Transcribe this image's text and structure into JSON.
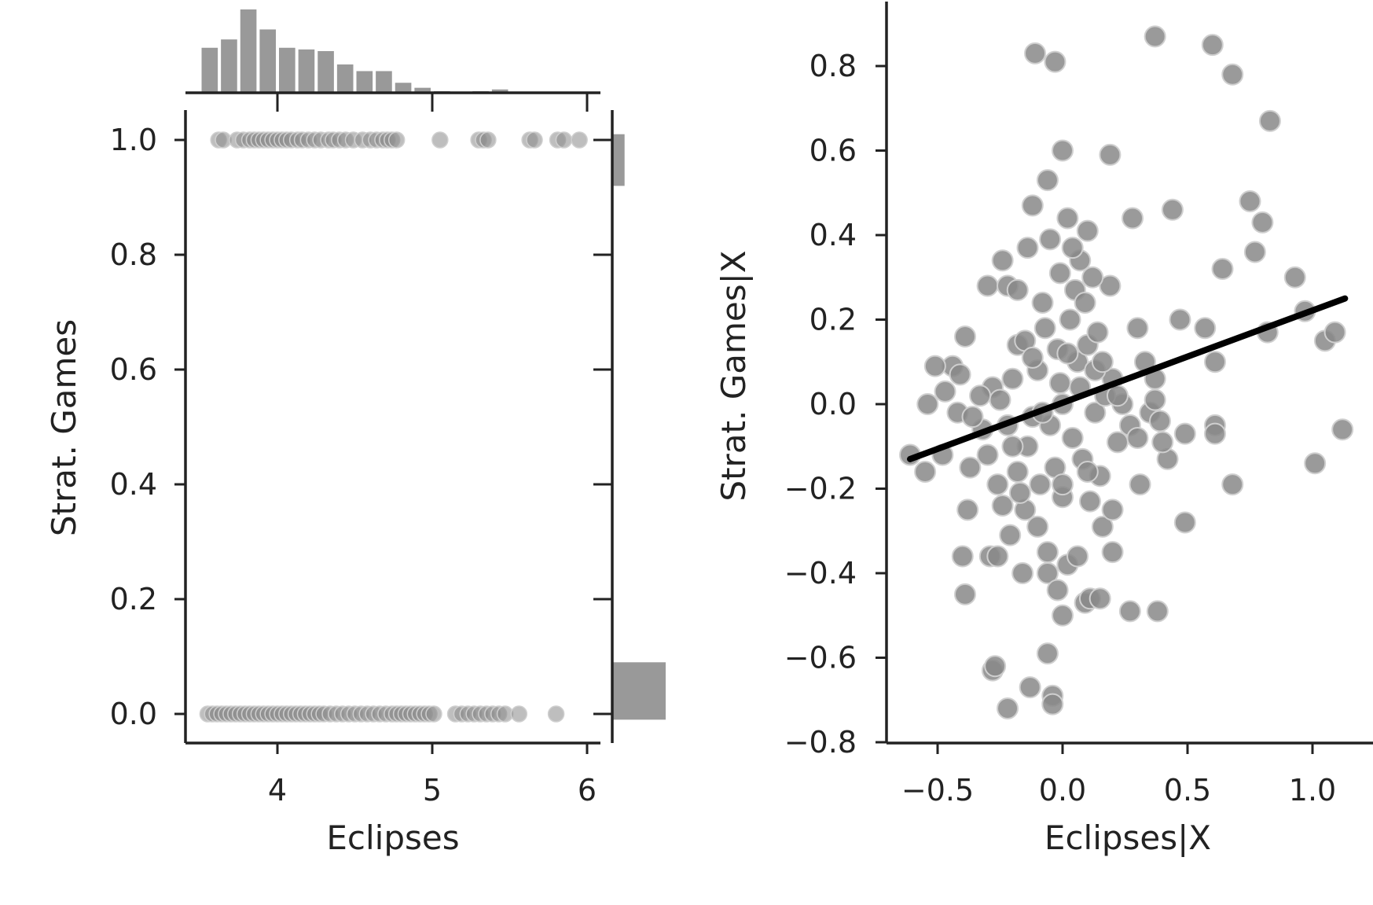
{
  "colors": {
    "point": "#888888",
    "point_edge": "#cfcfcf",
    "bar": "#999999",
    "axis": "#222222",
    "fit_line": "#000000"
  },
  "chart_data": [
    {
      "type": "scatter",
      "xlabel": "Eclipses",
      "ylabel": "Strat. Games",
      "xlim": [
        3.4,
        6.1
      ],
      "ylim": [
        -0.05,
        1.05
      ],
      "xticks": [
        "4",
        "5",
        "6"
      ],
      "xtick_values": [
        4,
        5,
        6
      ],
      "yticks": [
        "0.0",
        "0.2",
        "0.4",
        "0.6",
        "0.8",
        "1.0"
      ],
      "ytick_values": [
        0.0,
        0.2,
        0.4,
        0.6,
        0.8,
        1.0
      ],
      "points_y1": [
        3.62,
        3.65,
        3.74,
        3.78,
        3.82,
        3.85,
        3.88,
        3.91,
        3.94,
        3.97,
        4.0,
        4.03,
        4.06,
        4.09,
        4.13,
        4.16,
        4.2,
        4.24,
        4.28,
        4.33,
        4.36,
        4.4,
        4.44,
        4.49,
        4.55,
        4.6,
        4.64,
        4.68,
        4.71,
        4.74,
        4.77,
        5.05,
        5.3,
        5.33,
        5.36,
        5.63,
        5.66,
        5.81,
        5.85,
        5.95
      ],
      "points_y0": [
        3.55,
        3.58,
        3.61,
        3.64,
        3.67,
        3.7,
        3.73,
        3.76,
        3.79,
        3.82,
        3.85,
        3.88,
        3.91,
        3.94,
        3.97,
        4.0,
        4.03,
        4.06,
        4.09,
        4.12,
        4.15,
        4.18,
        4.21,
        4.24,
        4.27,
        4.3,
        4.34,
        4.38,
        4.42,
        4.46,
        4.5,
        4.54,
        4.58,
        4.62,
        4.66,
        4.7,
        4.74,
        4.77,
        4.8,
        4.83,
        4.86,
        4.89,
        4.92,
        4.95,
        4.98,
        5.01,
        5.15,
        5.19,
        5.23,
        5.27,
        5.31,
        5.35,
        5.39,
        5.43,
        5.47,
        5.56,
        5.8
      ],
      "marginal_x": {
        "bin_edges": [
          3.5,
          3.625,
          3.75,
          3.875,
          4.0,
          4.125,
          4.25,
          4.375,
          4.5,
          4.625,
          4.75,
          4.875,
          5.0,
          5.125,
          5.25,
          5.375,
          5.5
        ],
        "counts": [
          27,
          32,
          50,
          38,
          27,
          26,
          25,
          17,
          13,
          13,
          6,
          3,
          1,
          0,
          1,
          2
        ]
      },
      "marginal_y": {
        "bins": [
          {
            "from": 0.92,
            "to": 1.01,
            "count": 45
          },
          {
            "from": -0.01,
            "to": 0.09,
            "count": 195
          }
        ]
      }
    },
    {
      "type": "scatter",
      "xlabel": "Eclipses|X",
      "ylabel": "Strat. Games|X",
      "xlim": [
        -0.7,
        1.15
      ],
      "ylim": [
        -0.8,
        0.95
      ],
      "xticks": [
        "−0.5",
        "0.0",
        "0.5",
        "1.0"
      ],
      "xtick_values": [
        -0.5,
        0.0,
        0.5,
        1.0
      ],
      "yticks": [
        "−0.8",
        "−0.6",
        "−0.4",
        "−0.2",
        "0.0",
        "0.2",
        "0.4",
        "0.6",
        "0.8"
      ],
      "ytick_values": [
        -0.8,
        -0.6,
        -0.4,
        -0.2,
        0.0,
        0.2,
        0.4,
        0.6,
        0.8
      ],
      "fit_line": {
        "x": [
          -0.61,
          1.13
        ],
        "y": [
          -0.13,
          0.25
        ]
      },
      "points": [
        [
          -0.03,
          0.81
        ],
        [
          -0.11,
          0.83
        ],
        [
          0.37,
          0.87
        ],
        [
          0.6,
          0.85
        ],
        [
          0.68,
          0.78
        ],
        [
          0.83,
          0.67
        ],
        [
          0.0,
          0.6
        ],
        [
          0.19,
          0.59
        ],
        [
          -0.06,
          0.53
        ],
        [
          -0.12,
          0.47
        ],
        [
          0.02,
          0.44
        ],
        [
          0.1,
          0.41
        ],
        [
          0.28,
          0.44
        ],
        [
          0.44,
          0.46
        ],
        [
          0.75,
          0.48
        ],
        [
          0.8,
          0.43
        ],
        [
          -0.24,
          0.34
        ],
        [
          -0.14,
          0.37
        ],
        [
          0.07,
          0.34
        ],
        [
          0.64,
          0.32
        ],
        [
          0.77,
          0.36
        ],
        [
          0.93,
          0.3
        ],
        [
          -0.3,
          0.28
        ],
        [
          -0.22,
          0.28
        ],
        [
          0.19,
          0.28
        ],
        [
          0.97,
          0.22
        ],
        [
          -0.08,
          0.24
        ],
        [
          0.03,
          0.2
        ],
        [
          0.3,
          0.18
        ],
        [
          0.47,
          0.2
        ],
        [
          0.57,
          0.18
        ],
        [
          0.82,
          0.17
        ],
        [
          1.05,
          0.15
        ],
        [
          1.09,
          0.17
        ],
        [
          -0.39,
          0.16
        ],
        [
          -0.18,
          0.14
        ],
        [
          -0.44,
          0.09
        ],
        [
          0.33,
          0.1
        ],
        [
          0.61,
          0.1
        ],
        [
          -0.41,
          0.07
        ],
        [
          0.37,
          0.06
        ],
        [
          -0.51,
          0.09
        ],
        [
          -0.47,
          0.03
        ],
        [
          -0.54,
          0.0
        ],
        [
          -0.42,
          -0.02
        ],
        [
          0.24,
          0.0
        ],
        [
          0.35,
          -0.02
        ],
        [
          -0.48,
          -0.12
        ],
        [
          -0.55,
          -0.16
        ],
        [
          -0.37,
          -0.15
        ],
        [
          -0.61,
          -0.12
        ],
        [
          0.49,
          -0.07
        ],
        [
          0.61,
          -0.05
        ],
        [
          0.61,
          -0.07
        ],
        [
          0.68,
          -0.19
        ],
        [
          1.12,
          -0.06
        ],
        [
          1.01,
          -0.14
        ],
        [
          0.42,
          -0.13
        ],
        [
          0.31,
          -0.19
        ],
        [
          0.49,
          -0.28
        ],
        [
          -0.38,
          -0.25
        ],
        [
          -0.4,
          -0.36
        ],
        [
          -0.29,
          -0.36
        ],
        [
          -0.26,
          -0.36
        ],
        [
          -0.21,
          -0.31
        ],
        [
          -0.16,
          -0.4
        ],
        [
          -0.06,
          -0.35
        ],
        [
          -0.06,
          -0.4
        ],
        [
          -0.02,
          -0.44
        ],
        [
          0.02,
          -0.38
        ],
        [
          0.06,
          -0.36
        ],
        [
          0.09,
          -0.47
        ],
        [
          0.11,
          -0.46
        ],
        [
          0.15,
          -0.46
        ],
        [
          0.27,
          -0.49
        ],
        [
          0.38,
          -0.49
        ],
        [
          0.0,
          -0.5
        ],
        [
          -0.39,
          -0.45
        ],
        [
          -0.28,
          -0.63
        ],
        [
          -0.27,
          -0.62
        ],
        [
          -0.06,
          -0.59
        ],
        [
          -0.13,
          -0.67
        ],
        [
          -0.22,
          -0.72
        ],
        [
          -0.04,
          -0.69
        ],
        [
          -0.04,
          -0.71
        ],
        [
          0.2,
          -0.35
        ],
        [
          0.16,
          -0.29
        ],
        [
          0.2,
          -0.25
        ],
        [
          0.11,
          -0.23
        ],
        [
          0.0,
          -0.22
        ],
        [
          -0.15,
          -0.25
        ],
        [
          -0.24,
          -0.24
        ],
        [
          -0.1,
          -0.29
        ],
        [
          -0.03,
          -0.15
        ],
        [
          0.08,
          -0.13
        ],
        [
          0.15,
          -0.17
        ],
        [
          -0.18,
          -0.16
        ],
        [
          -0.26,
          -0.19
        ],
        [
          -0.3,
          -0.12
        ],
        [
          0.22,
          -0.09
        ],
        [
          -0.05,
          -0.05
        ],
        [
          -0.12,
          -0.03
        ],
        [
          0.13,
          -0.02
        ],
        [
          0.17,
          0.02
        ],
        [
          0.2,
          0.06
        ],
        [
          -0.2,
          0.06
        ],
        [
          -0.28,
          0.04
        ],
        [
          -0.1,
          0.08
        ],
        [
          0.06,
          0.1
        ],
        [
          -0.02,
          0.13
        ],
        [
          -0.15,
          0.15
        ],
        [
          0.1,
          0.14
        ],
        [
          0.14,
          0.17
        ],
        [
          -0.07,
          0.18
        ],
        [
          0.05,
          0.27
        ],
        [
          -0.01,
          0.31
        ],
        [
          0.12,
          0.3
        ],
        [
          -0.05,
          0.39
        ],
        [
          0.04,
          0.37
        ],
        [
          -0.18,
          0.27
        ],
        [
          0.09,
          0.24
        ],
        [
          -0.01,
          0.05
        ],
        [
          0.0,
          0.0
        ],
        [
          -0.08,
          -0.02
        ],
        [
          0.04,
          -0.08
        ],
        [
          -0.14,
          -0.1
        ],
        [
          -0.22,
          -0.05
        ],
        [
          -0.25,
          0.01
        ],
        [
          0.07,
          0.04
        ],
        [
          0.27,
          -0.05
        ],
        [
          0.3,
          -0.08
        ],
        [
          0.39,
          -0.04
        ],
        [
          0.37,
          0.01
        ],
        [
          0.4,
          -0.09
        ],
        [
          -0.33,
          0.02
        ],
        [
          -0.32,
          -0.06
        ],
        [
          -0.36,
          -0.03
        ],
        [
          -0.2,
          -0.1
        ],
        [
          0.1,
          -0.16
        ],
        [
          0.0,
          -0.19
        ],
        [
          -0.09,
          -0.19
        ],
        [
          -0.17,
          -0.21
        ],
        [
          0.13,
          0.08
        ],
        [
          0.16,
          0.1
        ],
        [
          -0.12,
          0.11
        ],
        [
          0.02,
          0.12
        ],
        [
          0.22,
          0.02
        ]
      ]
    }
  ]
}
